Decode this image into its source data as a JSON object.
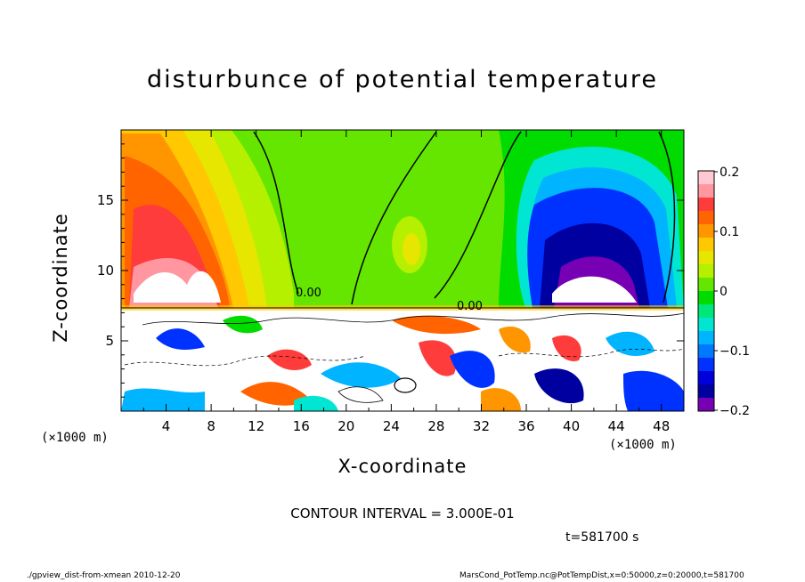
{
  "chart_data": {
    "type": "heatmap",
    "title": "disturbunce of potential temperature",
    "xlabel": "X-coordinate",
    "ylabel": "Z-coordinate",
    "x_unit_label": "(×1000 m)",
    "y_unit_label": "(×1000 m)",
    "xlim": [
      0,
      50
    ],
    "ylim": [
      0,
      20
    ],
    "x_ticks": [
      "4",
      "8",
      "12",
      "16",
      "20",
      "24",
      "28",
      "32",
      "36",
      "40",
      "44",
      "48"
    ],
    "y_ticks": [
      "5",
      "10",
      "15"
    ],
    "colorbar": {
      "range": [
        -0.2,
        0.2
      ],
      "tick_labels": [
        "0.2",
        "0.1",
        "0",
        "−0.1",
        "−0.2"
      ],
      "colors": [
        "#ffc8d2",
        "#ff96a0",
        "#ff3c3c",
        "#ff6400",
        "#ff9600",
        "#ffc800",
        "#e6e600",
        "#b4f000",
        "#64e600",
        "#00dc00",
        "#00e678",
        "#00e6d2",
        "#00b4ff",
        "#0078ff",
        "#0032ff",
        "#0000dc",
        "#0000a0",
        "#7800b4"
      ]
    },
    "contour_labels": [
      "0.00",
      "0.00"
    ],
    "contour_interval": "CONTOUR INTERVAL = 3.000E-01",
    "time": "t=581700 s",
    "footer_left": "./gpview_dist-from-xmean  2010-12-20",
    "footer_right": "MarsCond_PotTemp.nc@PotTempDist,x=0:50000,z=0:20000,t=581700",
    "grid": false
  }
}
